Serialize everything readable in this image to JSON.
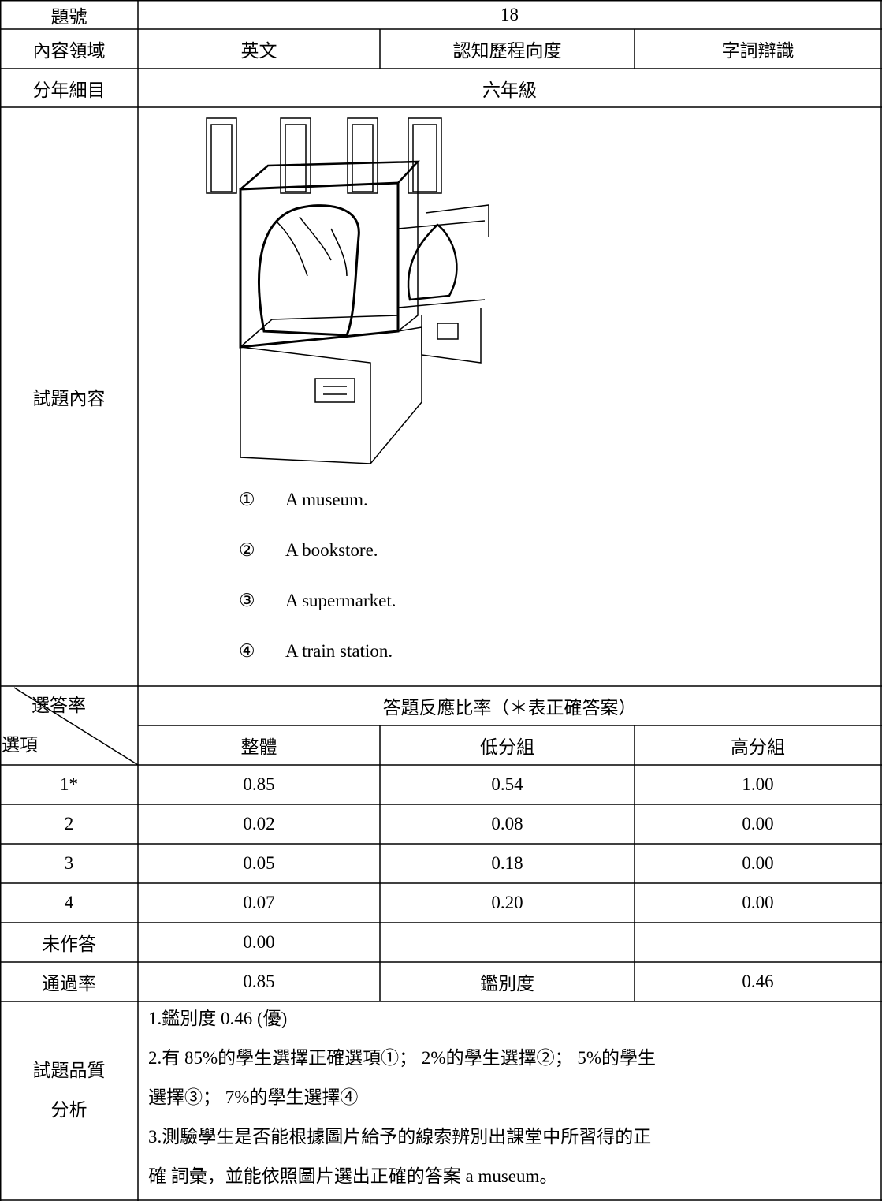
{
  "table": {
    "item_no": {
      "label": "題號",
      "value": "18"
    },
    "domain": {
      "label": "內容領域",
      "subject": "英文",
      "dimension_label": "認知歷程向度",
      "dimension": "字詞辯識"
    },
    "grade": {
      "label": "分年細目",
      "value": "六年級"
    },
    "content": {
      "label": "試題內容",
      "options": [
        {
          "marker": "①",
          "text": "A museum."
        },
        {
          "marker": "②",
          "text": "A bookstore."
        },
        {
          "marker": "③",
          "text": "A supermarket."
        },
        {
          "marker": "④",
          "text": "A train station."
        }
      ]
    },
    "response": {
      "corner_top": "選答率",
      "corner_bottom": "選項",
      "title": "答題反應比率（＊表正確答案）",
      "columns": [
        "整體",
        "低分組",
        "高分組"
      ],
      "rows": [
        [
          "1*",
          "0.85",
          "0.54",
          "1.00"
        ],
        [
          "2",
          "0.02",
          "0.08",
          "0.00"
        ],
        [
          "3",
          "0.05",
          "0.18",
          "0.00"
        ],
        [
          "4",
          "0.07",
          "0.20",
          "0.00"
        ],
        [
          "未作答",
          "0.00"
        ]
      ]
    },
    "pass": {
      "label": "通過率",
      "value": "0.85",
      "disc_label": "鑑別度",
      "disc_value": "0.46"
    },
    "quality": {
      "label_lines": [
        "試題品質",
        "分析"
      ],
      "lines": [
        "1.鑑別度 0.46 (優)",
        "2.有  85%的學生選擇正確選項①； 2%的學生選擇②； 5%的學生",
        "選擇③； 7%的學生選擇④",
        "3.測驗學生是否能根據圖片給予的線索辨別出課堂中所習得的正",
        "確  詞彙，並能依照圖片選出正確的答案  a museum。"
      ]
    }
  }
}
